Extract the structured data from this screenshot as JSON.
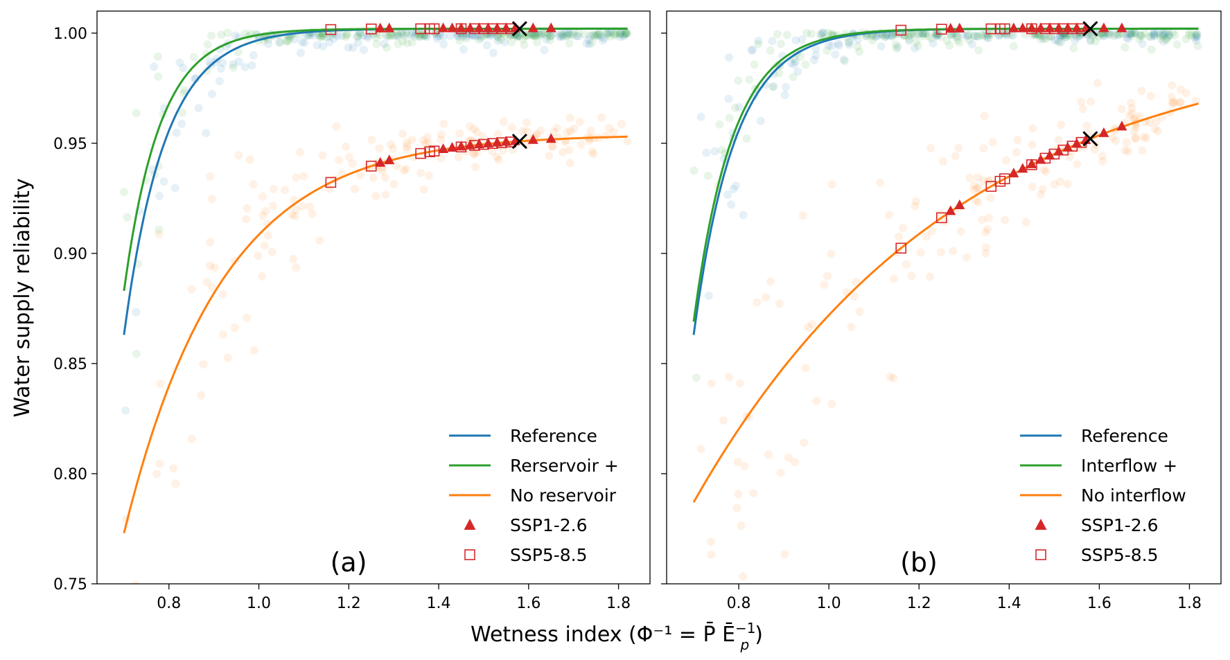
{
  "chart_data": [
    {
      "type": "scatter",
      "panel_label": "(a)",
      "ylabel": "Water supply reliability",
      "xlim": [
        0.64,
        1.87
      ],
      "ylim": [
        0.75,
        1.01
      ],
      "yticks": [
        0.75,
        0.8,
        0.85,
        0.9,
        0.95,
        1.0
      ],
      "ytick_labels": [
        "0.75",
        "0.80",
        "0.85",
        "0.90",
        "0.95",
        "1.00"
      ],
      "xticks": [
        0.8,
        1.0,
        1.2,
        1.4,
        1.6,
        1.8
      ],
      "xtick_labels": [
        "0.8",
        "1.0",
        "1.2",
        "1.4",
        "1.6",
        "1.8"
      ],
      "legend_position": "lower-right",
      "curves": [
        {
          "name": "Reference",
          "color": "#1f77b4",
          "x0": 0.7,
          "x1": 1.82,
          "y_start": 0.863,
          "y_end": 1.002,
          "k": 11.0
        },
        {
          "name": "Rerservoir +",
          "color": "#2ca02c",
          "x0": 0.7,
          "x1": 1.82,
          "y_start": 0.883,
          "y_end": 1.002,
          "k": 12.5
        },
        {
          "name": "No reservoir",
          "color": "#ff7f0e",
          "x0": 0.7,
          "x1": 1.82,
          "y_start": 0.773,
          "y_end": 0.953,
          "k": 4.6
        }
      ],
      "scenarios": [
        {
          "name": "SSP1-2.6",
          "marker": "triangle",
          "color": "#d62728"
        },
        {
          "name": "SSP5-8.5",
          "marker": "square",
          "color": "#d62728"
        }
      ],
      "ssp126_x": [
        1.27,
        1.29,
        1.41,
        1.43,
        1.45,
        1.47,
        1.49,
        1.51,
        1.53,
        1.55,
        1.57,
        1.61,
        1.65
      ],
      "ssp585_x": [
        1.16,
        1.25,
        1.36,
        1.38,
        1.39,
        1.45,
        1.48,
        1.5,
        1.52,
        1.54,
        1.56
      ],
      "reference_marker_x": 1.58
    },
    {
      "type": "scatter",
      "panel_label": "(b)",
      "xlim": [
        0.64,
        1.87
      ],
      "ylim": [
        0.75,
        1.01
      ],
      "yticks": [
        0.75,
        0.8,
        0.85,
        0.9,
        0.95,
        1.0
      ],
      "xticks": [
        0.8,
        1.0,
        1.2,
        1.4,
        1.6,
        1.8
      ],
      "xtick_labels": [
        "0.8",
        "1.0",
        "1.2",
        "1.4",
        "1.6",
        "1.8"
      ],
      "legend_position": "lower-right",
      "curves": [
        {
          "name": "Reference",
          "color": "#1f77b4",
          "x0": 0.7,
          "x1": 1.82,
          "y_start": 0.863,
          "y_end": 1.002,
          "k": 11.0
        },
        {
          "name": "Interflow +",
          "color": "#2ca02c",
          "x0": 0.7,
          "x1": 1.82,
          "y_start": 0.869,
          "y_end": 1.002,
          "k": 11.5
        },
        {
          "name": "No interflow",
          "color": "#ff7f0e",
          "x0": 0.7,
          "x1": 1.82,
          "y_start": 0.787,
          "y_end": 0.968,
          "k": 1.7
        }
      ],
      "scenarios": [
        {
          "name": "SSP1-2.6",
          "marker": "triangle",
          "color": "#d62728"
        },
        {
          "name": "SSP5-8.5",
          "marker": "square",
          "color": "#d62728"
        }
      ],
      "ssp126_x": [
        1.27,
        1.29,
        1.41,
        1.43,
        1.45,
        1.47,
        1.49,
        1.51,
        1.53,
        1.55,
        1.57,
        1.61,
        1.65
      ],
      "ssp585_x": [
        1.16,
        1.25,
        1.36,
        1.38,
        1.39,
        1.45,
        1.48,
        1.5,
        1.52,
        1.54,
        1.56
      ],
      "reference_marker_x": 1.58
    }
  ],
  "shared": {
    "xlabel": "Wetness index (Φ⁻¹ = P̄ Ē",
    "xlabel_sub": "p",
    "xlabel_sup": "−1",
    "xlabel_end": ")"
  }
}
